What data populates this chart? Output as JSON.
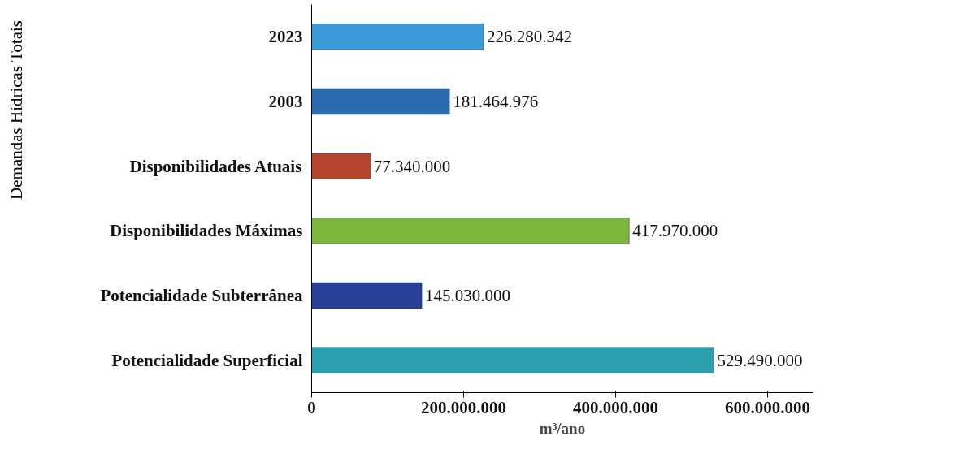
{
  "chart_data": {
    "type": "bar",
    "orientation": "horizontal",
    "categories": [
      "2023",
      "2003",
      "Disponibilidades Atuais",
      "Disponibilidades Máximas",
      "Potencialidade Subterrânea",
      "Potencialidade Superficial"
    ],
    "values": [
      226280342,
      181464976,
      77340000,
      417970000,
      145030000,
      529490000
    ],
    "colors": [
      "#3b9ad8",
      "#2b6cae",
      "#b4452c",
      "#7cb83c",
      "#283f98",
      "#2a9fae"
    ],
    "value_labels": [
      "226.280.342",
      "181.464.976",
      "77.340.000",
      "417.970.000",
      "145.030.000",
      "529.490.000"
    ],
    "xlim": [
      0,
      660000000
    ],
    "xticks": [
      0,
      {
        "value": 200000000,
        "label": "200.000.000"
      },
      {
        "value": 400000000,
        "label": "400.000.000"
      },
      {
        "value": 600000000,
        "label": "600.000.000"
      }
    ],
    "xlabel": "m³/ano",
    "annotations": [
      "Demandas Hídricas Totais"
    ],
    "grid": false
  }
}
